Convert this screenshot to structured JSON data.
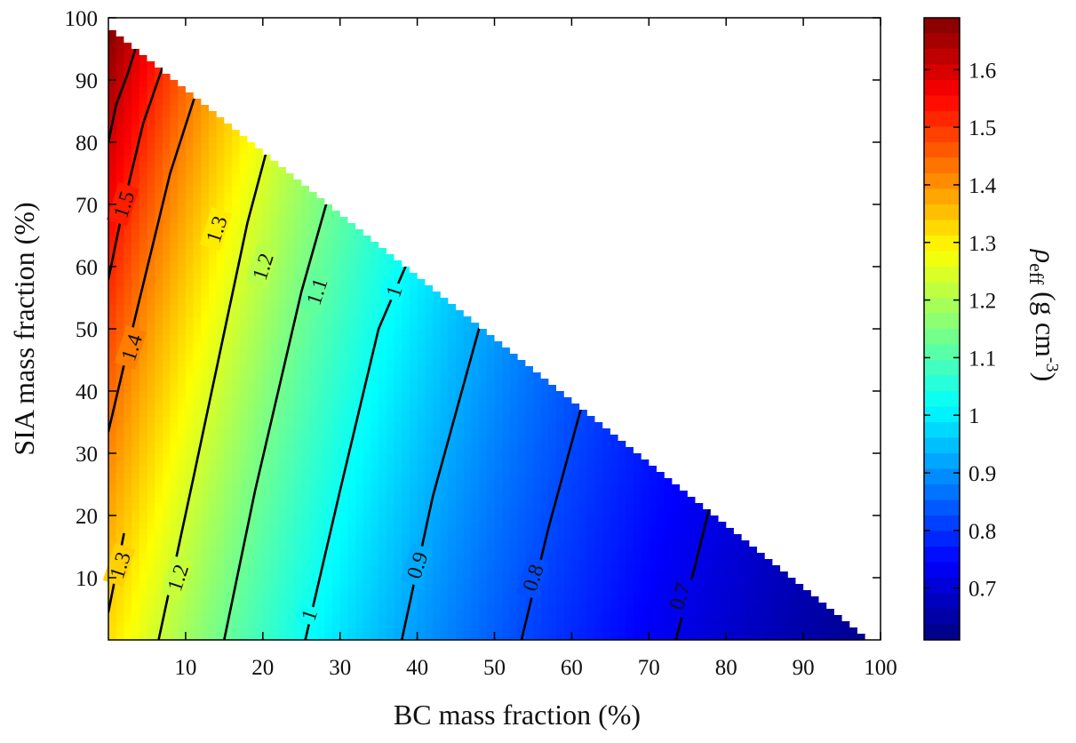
{
  "chart_data": {
    "type": "heatmap",
    "subtype": "ternary-composition filled contour (BC + SIA <= 100%)",
    "xlabel": "BC mass fraction (%)",
    "ylabel": "SIA mass fraction (%)",
    "xlim": [
      0,
      100
    ],
    "ylim": [
      0,
      100
    ],
    "x_ticks": [
      "10",
      "20",
      "30",
      "40",
      "50",
      "60",
      "70",
      "80",
      "90",
      "100"
    ],
    "y_ticks": [
      "10",
      "20",
      "30",
      "40",
      "50",
      "60",
      "70",
      "80",
      "90",
      "100"
    ],
    "colorbar": {
      "label_symbol": "ρ",
      "label_subscript": "eff",
      "label_units": "(g cm",
      "label_units_exponent": "-3",
      "label_units_close": ")",
      "range": [
        0.61,
        1.69
      ],
      "ticks": [
        "0.7",
        "0.8",
        "0.9",
        "1",
        "1.1",
        "1.2",
        "1.3",
        "1.4",
        "1.5",
        "1.6"
      ],
      "colormap": "jet"
    },
    "valid_region": "BC + SIA <= 98%",
    "contour_lines": [
      {
        "level": 1.5,
        "label": "1.5",
        "points": [
          [
            0,
            80
          ],
          [
            1,
            86
          ],
          [
            2.5,
            91
          ],
          [
            3.5,
            95
          ]
        ]
      },
      {
        "level": 1.4,
        "label": "1.4",
        "points": [
          [
            0,
            58
          ],
          [
            2,
            70
          ],
          [
            4.5,
            83
          ],
          [
            7,
            92
          ]
        ]
      },
      {
        "level": 1.3,
        "label": "1.3",
        "points": [
          [
            0,
            33.5
          ],
          [
            3.5,
            52
          ],
          [
            8,
            75
          ],
          [
            11.5,
            88.5
          ]
        ]
      },
      {
        "level": 1.3,
        "label": "1.3",
        "points": [
          [
            0,
            4.5
          ],
          [
            2,
            17
          ]
        ]
      },
      {
        "level": 1.2,
        "label": "1.2",
        "points": [
          [
            6.5,
            0
          ],
          [
            11,
            26
          ],
          [
            18,
            67
          ],
          [
            21,
            81
          ]
        ]
      },
      {
        "level": 1.1,
        "label": "1.1",
        "points": [
          [
            15,
            0
          ],
          [
            19,
            24
          ],
          [
            25,
            56
          ],
          [
            29,
            73.5
          ]
        ]
      },
      {
        "level": 1.0,
        "label": "1",
        "points": [
          [
            25.5,
            0
          ],
          [
            30,
            24
          ],
          [
            35,
            50
          ],
          [
            39,
            61.5
          ]
        ]
      },
      {
        "level": 0.9,
        "label": "0.9",
        "points": [
          [
            38,
            0
          ],
          [
            42,
            23
          ],
          [
            48,
            50
          ]
        ]
      },
      {
        "level": 0.8,
        "label": "0.8",
        "points": [
          [
            53.5,
            0
          ],
          [
            57,
            18
          ],
          [
            61.5,
            38.5
          ]
        ]
      },
      {
        "level": 0.7,
        "label": "0.7",
        "points": [
          [
            73.5,
            0
          ],
          [
            76,
            12
          ],
          [
            78,
            22
          ]
        ]
      }
    ],
    "contour_labels": [
      {
        "text": "1.5",
        "x": 2,
        "y": 70
      },
      {
        "text": "1.4",
        "x": 3,
        "y": 47
      },
      {
        "text": "1.3",
        "x": 1.5,
        "y": 12
      },
      {
        "text": "1.3",
        "x": 14,
        "y": 66
      },
      {
        "text": "1.2",
        "x": 9,
        "y": 10
      },
      {
        "text": "1.2",
        "x": 20,
        "y": 60
      },
      {
        "text": "1.1",
        "x": 27,
        "y": 56
      },
      {
        "text": "1",
        "x": 37,
        "y": 56
      },
      {
        "text": "1",
        "x": 26,
        "y": 4
      },
      {
        "text": "0.9",
        "x": 40,
        "y": 12
      },
      {
        "text": "0.8",
        "x": 55,
        "y": 10
      },
      {
        "text": "0.7",
        "x": 74,
        "y": 7
      }
    ]
  }
}
